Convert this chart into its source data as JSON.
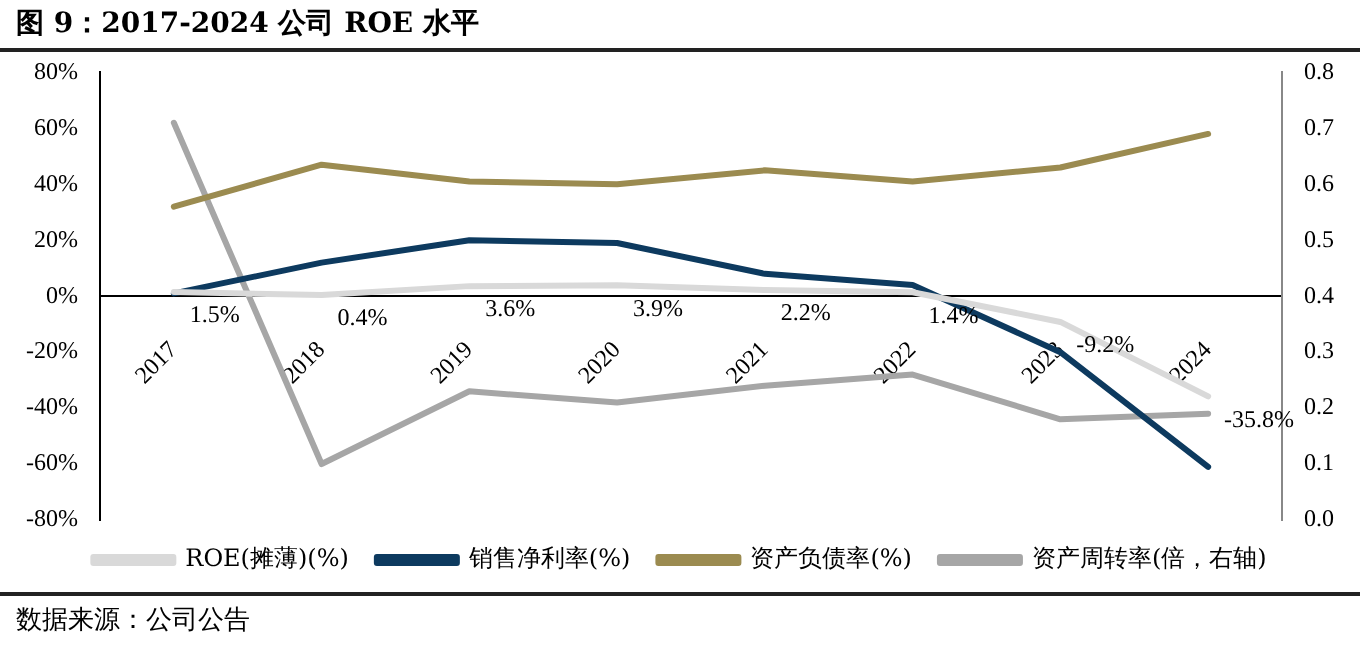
{
  "chart_data": {
    "type": "line",
    "title": "图 9：2017-2024 公司 ROE 水平",
    "categories": [
      "2017",
      "2018",
      "2019",
      "2020",
      "2021",
      "2022",
      "2023",
      "2024"
    ],
    "series": [
      {
        "name": "ROE(摊薄)(%)",
        "color": "#d9d9d9",
        "values": [
          1.5,
          0.4,
          3.6,
          3.9,
          2.2,
          1.4,
          -9.2,
          -35.8
        ],
        "value_labels": [
          "1.5%",
          "0.4%",
          "3.6%",
          "3.9%",
          "2.2%",
          "1.4%",
          "-9.2%",
          "-35.8%"
        ]
      },
      {
        "name": "销售净利率(%)",
        "color": "#0d3a5f",
        "values": [
          1,
          12,
          20,
          19,
          8,
          4,
          -20,
          -61
        ]
      },
      {
        "name": "资产负债率(%)",
        "color": "#9b8b50",
        "values": [
          32,
          47,
          41,
          40,
          45,
          41,
          46,
          58
        ]
      },
      {
        "name": "资产周转率(倍，右轴)",
        "color": "#a6a6a6",
        "axis": "y2",
        "values": [
          0.71,
          0.1,
          0.23,
          0.21,
          0.24,
          0.26,
          0.18,
          0.19
        ]
      }
    ],
    "ylim": [
      -80,
      80
    ],
    "yticks": [
      {
        "value": -80,
        "label": "-80%"
      },
      {
        "value": -60,
        "label": "-60%"
      },
      {
        "value": -40,
        "label": "-40%"
      },
      {
        "value": -20,
        "label": "-20%"
      },
      {
        "value": 0,
        "label": "0%"
      },
      {
        "value": 20,
        "label": "20%"
      },
      {
        "value": 40,
        "label": "40%"
      },
      {
        "value": 60,
        "label": "60%"
      },
      {
        "value": 80,
        "label": "80%"
      }
    ],
    "y2lim": [
      0,
      0.8
    ],
    "y2ticks": [
      {
        "value": 0,
        "label": "0.0"
      },
      {
        "value": 0.1,
        "label": "0.1"
      },
      {
        "value": 0.2,
        "label": "0.2"
      },
      {
        "value": 0.3,
        "label": "0.3"
      },
      {
        "value": 0.4,
        "label": "0.4"
      },
      {
        "value": 0.5,
        "label": "0.5"
      },
      {
        "value": 0.6,
        "label": "0.6"
      },
      {
        "value": 0.7,
        "label": "0.7"
      },
      {
        "value": 0.8,
        "label": "0.8"
      }
    ],
    "grid": false,
    "legend": "bottom",
    "marker": "none",
    "line_style": "solid",
    "annotations": [
      "数据来源：公司公告"
    ]
  }
}
